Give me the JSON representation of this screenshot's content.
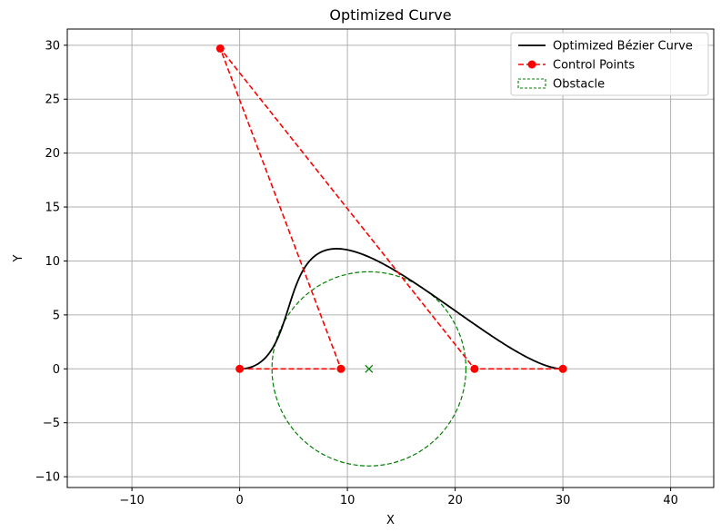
{
  "chart_data": {
    "type": "line",
    "title": "Optimized Curve",
    "xlabel": "X",
    "ylabel": "Y",
    "xlim": [
      -16,
      44
    ],
    "ylim": [
      -11,
      31.5
    ],
    "xticks": [
      -10,
      0,
      10,
      20,
      30,
      40
    ],
    "yticks": [
      -10,
      -5,
      0,
      5,
      10,
      15,
      20,
      25,
      30
    ],
    "grid": true,
    "legend_position": "top-right",
    "series": [
      {
        "name": "Optimized Bézier Curve",
        "kind": "bezier",
        "color": "#000000",
        "style": "solid"
      },
      {
        "name": "Control Points",
        "kind": "polyline-markers",
        "color": "#ff0000",
        "style": "dashed",
        "x": [
          0,
          9.4,
          -1.8,
          21.8,
          30
        ],
        "y": [
          0,
          0,
          29.7,
          0,
          0
        ]
      },
      {
        "name": "Obstacle",
        "kind": "circle",
        "color": "#008000",
        "style": "dashed",
        "center": [
          12,
          0
        ],
        "radius": 9
      }
    ]
  }
}
